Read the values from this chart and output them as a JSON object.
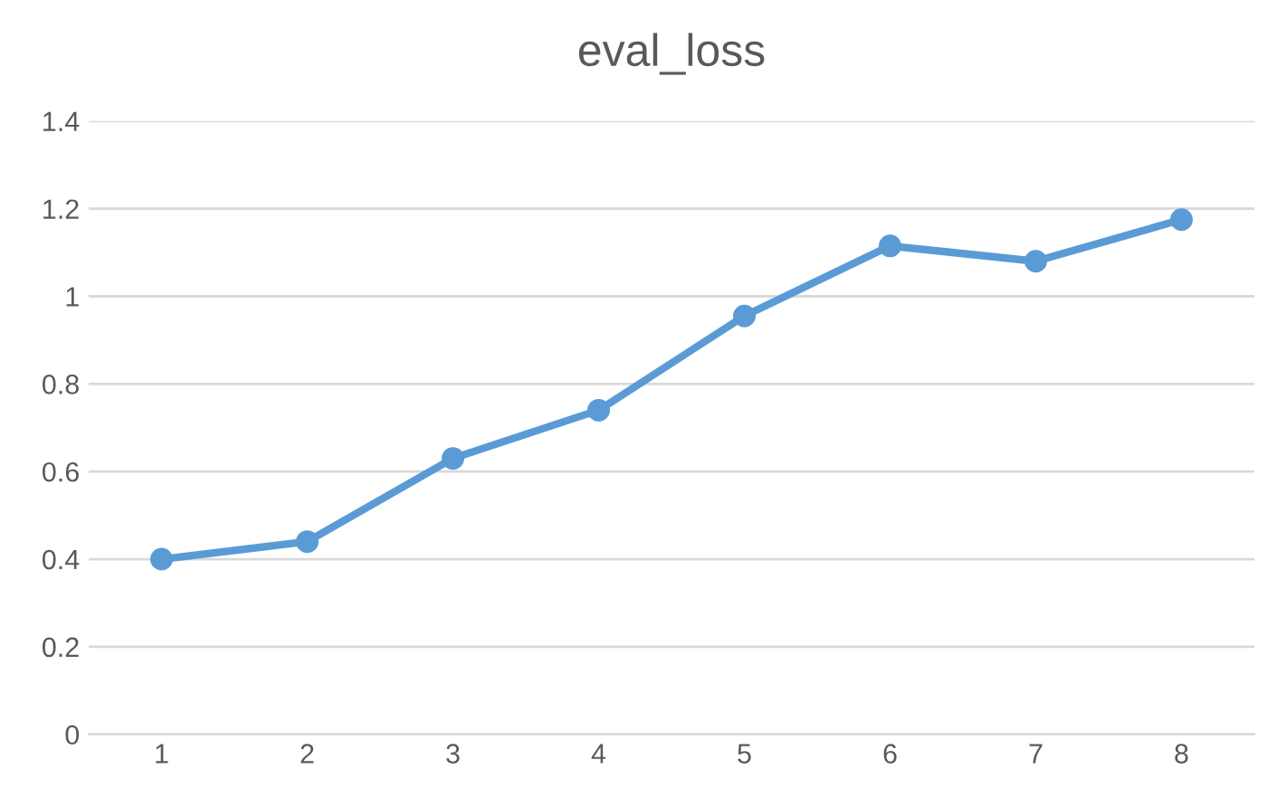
{
  "chart_data": {
    "type": "line",
    "title": "eval_loss",
    "categories": [
      "1",
      "2",
      "3",
      "4",
      "5",
      "6",
      "7",
      "8"
    ],
    "series": [
      {
        "color": "#5b9bd5",
        "values": [
          0.4,
          0.44,
          0.63,
          0.74,
          0.955,
          1.115,
          1.08,
          1.175
        ]
      }
    ],
    "ylim": [
      0,
      1.4
    ],
    "yticks": [
      0,
      0.2,
      0.4,
      0.6,
      0.8,
      1,
      1.2,
      1.4
    ],
    "grid": "y",
    "marker": "circle",
    "line_style": "solid"
  }
}
